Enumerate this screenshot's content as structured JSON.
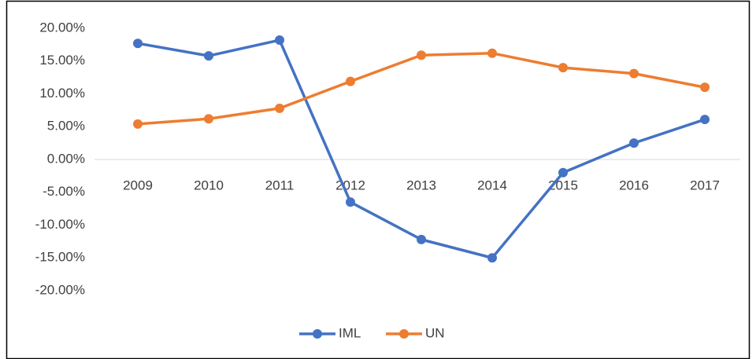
{
  "chart_data": {
    "type": "line",
    "categories": [
      "2009",
      "2010",
      "2011",
      "2012",
      "2013",
      "2014",
      "2015",
      "2016",
      "2017"
    ],
    "series": [
      {
        "name": "IML",
        "color": "#4472c4",
        "values": [
          17.7,
          15.8,
          18.2,
          -6.5,
          -12.2,
          -15.0,
          -2.0,
          2.5,
          6.1
        ]
      },
      {
        "name": "UN",
        "color": "#ed7d31",
        "values": [
          5.4,
          6.2,
          7.8,
          11.9,
          15.9,
          16.2,
          14.0,
          13.1,
          11.0
        ]
      }
    ],
    "ylim": [
      -20,
      20
    ],
    "yticks": [
      {
        "value": 20,
        "label": "20.00%"
      },
      {
        "value": 15,
        "label": "15.00%"
      },
      {
        "value": 10,
        "label": "10.00%"
      },
      {
        "value": 5,
        "label": "5.00%"
      },
      {
        "value": 0,
        "label": "0.00%"
      },
      {
        "value": -5,
        "label": "-5.00%"
      },
      {
        "value": -10,
        "label": "-10.00%"
      },
      {
        "value": -15,
        "label": "-15.00%"
      },
      {
        "value": -20,
        "label": "-20.00%"
      }
    ],
    "grid": false,
    "legend": "bottom"
  }
}
